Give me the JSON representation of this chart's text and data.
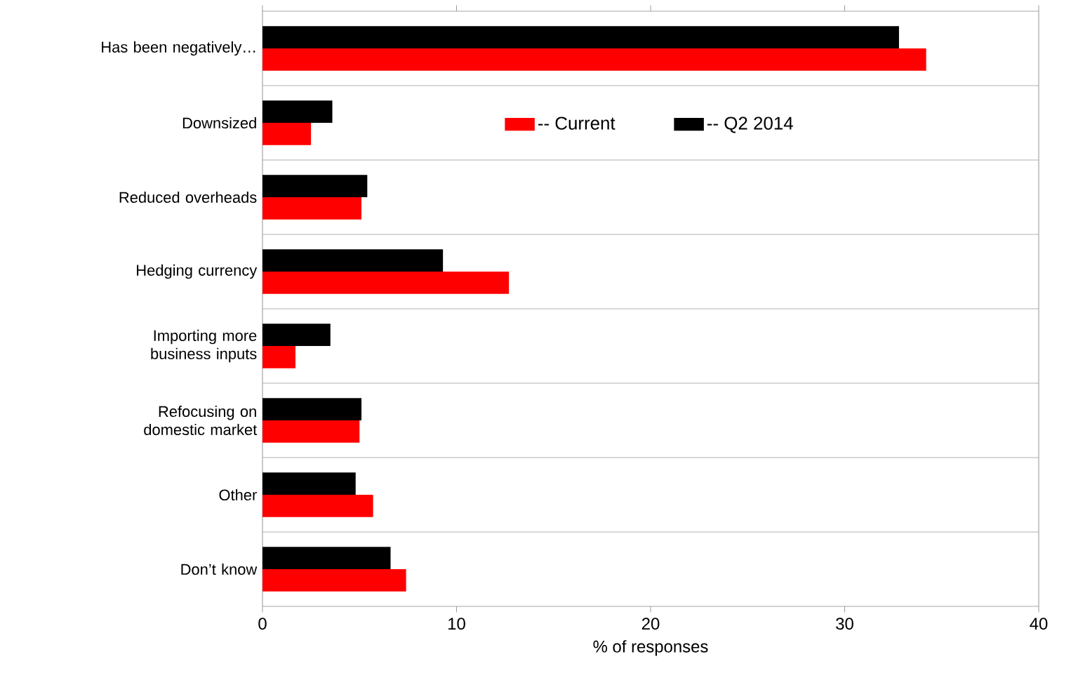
{
  "chart_data": {
    "type": "bar",
    "orientation": "horizontal",
    "xlabel": "% of responses",
    "categories": [
      "Has been negatively…",
      "Downsized",
      "Reduced overheads",
      "Hedging currency",
      "Importing more business inputs",
      "Refocusing on domestic market",
      "Other",
      "Don’t know"
    ],
    "series": [
      {
        "name": "-- Current",
        "color": "#ff0000",
        "values": [
          34.2,
          2.5,
          5.1,
          12.7,
          1.7,
          5.0,
          5.7,
          7.4
        ]
      },
      {
        "name": "-- Q2 2014",
        "color": "#000000",
        "values": [
          32.8,
          3.6,
          5.4,
          9.3,
          3.5,
          5.1,
          4.8,
          6.6
        ]
      }
    ],
    "xlim": [
      0,
      40
    ],
    "xticks": [
      0,
      10,
      20,
      30,
      40
    ],
    "grid": "y",
    "legend": "top"
  }
}
